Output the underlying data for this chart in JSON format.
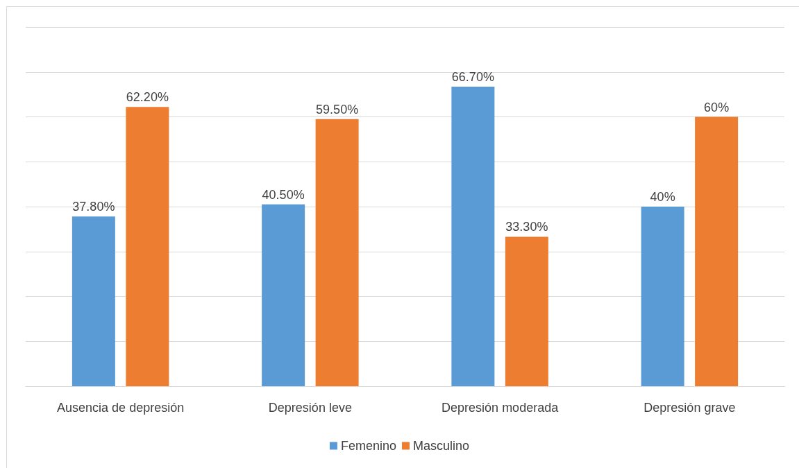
{
  "chart_data": {
    "type": "bar",
    "categories": [
      "Ausencia de depresión",
      "Depresión leve",
      "Depresión moderada",
      "Depresión grave"
    ],
    "series": [
      {
        "name": "Femenino",
        "color": "#5b9bd5",
        "values": [
          37.8,
          40.5,
          66.7,
          40
        ],
        "value_labels": [
          "37.80%",
          "40.50%",
          "66.70%",
          "40%"
        ]
      },
      {
        "name": "Masculino",
        "color": "#ed7d31",
        "values": [
          62.2,
          59.5,
          33.3,
          60
        ],
        "value_labels": [
          "62.20%",
          "59.50%",
          "33.30%",
          "60%"
        ]
      }
    ],
    "ylim": [
      0,
      80
    ],
    "yticks": [
      {
        "value": 0,
        "label": null
      },
      {
        "value": 10,
        "label": null
      },
      {
        "value": 20,
        "label": null
      },
      {
        "value": 30,
        "label": null
      },
      {
        "value": 40,
        "label": null
      },
      {
        "value": 50,
        "label": null
      },
      {
        "value": 60,
        "label": null
      },
      {
        "value": 70,
        "label": null
      },
      {
        "value": 80,
        "label": null
      }
    ],
    "grid": "y",
    "legend": "bottom"
  }
}
